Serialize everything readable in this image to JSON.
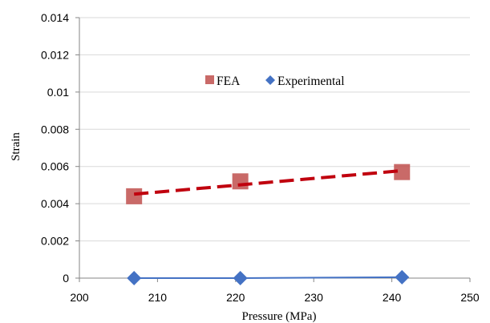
{
  "chart_data": {
    "type": "scatter",
    "title": "",
    "xlabel": "Pressure (MPa)",
    "ylabel": "Strain",
    "xlim": [
      200,
      250
    ],
    "ylim": [
      0,
      0.014
    ],
    "x_ticks": [
      "200",
      "210",
      "220",
      "230",
      "240",
      "250"
    ],
    "y_ticks": [
      "0",
      "0.002",
      "0.004",
      "0.006",
      "0.008",
      "0.01",
      "0.012",
      "0.014"
    ],
    "grid": "horizontal",
    "legend_position": "inside-top-center",
    "series": [
      {
        "name": "FEA",
        "marker": "square",
        "color": "#C0504D",
        "x": [
          207,
          220.6,
          241.3
        ],
        "y": [
          0.0044,
          0.0052,
          0.0057
        ],
        "trendline": {
          "type": "linear",
          "style": "dashed",
          "color": "#C0000E"
        }
      },
      {
        "name": "Experimental",
        "marker": "diamond",
        "color": "#4472C4",
        "x": [
          207,
          220.6,
          241.3
        ],
        "y": [
          0.0,
          0.0,
          5e-05
        ],
        "connected": true
      }
    ]
  }
}
